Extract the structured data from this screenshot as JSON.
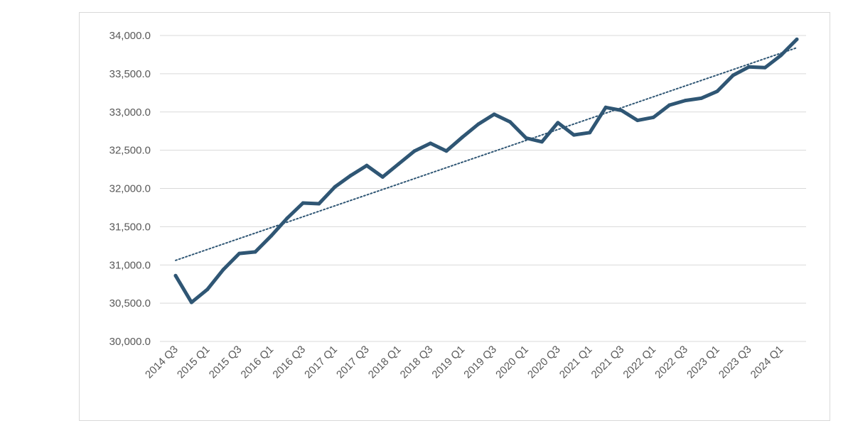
{
  "chart_data": {
    "type": "line",
    "title": "",
    "xlabel": "",
    "ylabel": "",
    "ylim": [
      30000,
      34000
    ],
    "y_ticks": [
      "30,000.0",
      "30,500.0",
      "31,000.0",
      "31,500.0",
      "32,000.0",
      "32,500.0",
      "33,000.0",
      "33,500.0",
      "34,000.0"
    ],
    "y_tick_values": [
      30000,
      30500,
      31000,
      31500,
      32000,
      32500,
      33000,
      33500,
      34000
    ],
    "x_tick_labels": [
      "2014 Q3",
      "2015 Q1",
      "2015 Q3",
      "2016 Q1",
      "2016 Q3",
      "2017 Q1",
      "2017 Q3",
      "2018 Q1",
      "2018 Q3",
      "2019 Q1",
      "2019 Q3",
      "2020 Q1",
      "2020 Q3",
      "2021 Q1",
      "2021 Q3",
      "2022 Q1",
      "2022 Q3",
      "2023 Q1",
      "2023 Q3",
      "2024 Q1"
    ],
    "categories": [
      "2014 Q3",
      "2014 Q4",
      "2015 Q1",
      "2015 Q2",
      "2015 Q3",
      "2015 Q4",
      "2016 Q1",
      "2016 Q2",
      "2016 Q3",
      "2016 Q4",
      "2017 Q1",
      "2017 Q2",
      "2017 Q3",
      "2017 Q4",
      "2018 Q1",
      "2018 Q2",
      "2018 Q3",
      "2018 Q4",
      "2019 Q1",
      "2019 Q2",
      "2019 Q3",
      "2019 Q4",
      "2020 Q1",
      "2020 Q2",
      "2020 Q3",
      "2020 Q4",
      "2021 Q1",
      "2021 Q2",
      "2021 Q3",
      "2021 Q4",
      "2022 Q1",
      "2022 Q2",
      "2022 Q3",
      "2022 Q4",
      "2023 Q1",
      "2023 Q2",
      "2023 Q3",
      "2023 Q4",
      "2024 Q1",
      "2024 Q2"
    ],
    "series": [
      {
        "values": [
          30860,
          30510,
          30680,
          30940,
          31150,
          31170,
          31380,
          31610,
          31810,
          31800,
          32020,
          32170,
          32300,
          32150,
          32320,
          32490,
          32590,
          32490,
          32670,
          32840,
          32970,
          32870,
          32660,
          32610,
          32860,
          32700,
          32730,
          33060,
          33020,
          32890,
          32930,
          33090,
          33150,
          33180,
          33270,
          33480,
          33590,
          33580,
          33740,
          33950
        ],
        "color": "#2f5674"
      }
    ],
    "trendline": {
      "type": "linear",
      "style": "dotted",
      "color": "#2f5674",
      "start": 31060,
      "end": 33840
    },
    "grid": true,
    "legend": "none"
  }
}
